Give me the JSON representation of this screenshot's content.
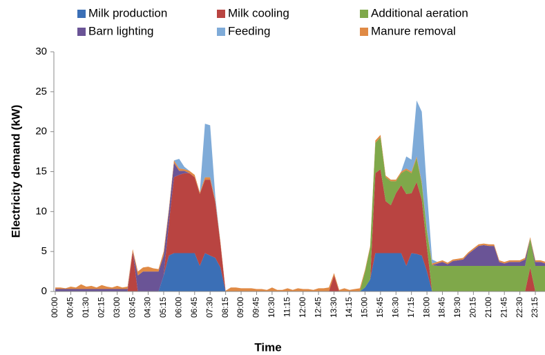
{
  "chart_data": {
    "type": "stacked-area",
    "y_label": "Electricity demand (kW)",
    "x_label": "Time",
    "ylim": [
      0,
      30
    ],
    "yticks": [
      0,
      5,
      10,
      15,
      20,
      25,
      30
    ],
    "categories": [
      "00:00",
      null,
      null,
      "00:45",
      null,
      null,
      "01:30",
      null,
      null,
      "02:15",
      null,
      null,
      "03:00",
      null,
      null,
      "03:45",
      null,
      null,
      "04:30",
      null,
      null,
      "05:15",
      null,
      null,
      "06:00",
      null,
      null,
      "06:45",
      null,
      null,
      "07:30",
      null,
      null,
      "08:15",
      null,
      null,
      "09:00",
      null,
      null,
      "09:45",
      null,
      null,
      "10:30",
      null,
      null,
      "11:15",
      null,
      null,
      "12:00",
      null,
      null,
      "12:45",
      null,
      null,
      "13:30",
      null,
      null,
      "14:15",
      null,
      null,
      "15:00",
      null,
      null,
      "15:45",
      null,
      null,
      "16:30",
      null,
      null,
      "17:15",
      null,
      null,
      "18:00",
      null,
      null,
      "18:45",
      null,
      null,
      "19:30",
      null,
      null,
      "20:15",
      null,
      null,
      "21:00",
      null,
      null,
      "21:45",
      null,
      null,
      "22:30",
      null,
      null,
      "23:15",
      null,
      null
    ],
    "series": [
      {
        "name": "Milk production",
        "color": "#3b6fb6",
        "values": [
          0,
          0,
          0,
          0,
          0,
          0,
          0,
          0,
          0,
          0,
          0,
          0,
          0,
          0,
          0,
          0,
          0,
          0,
          0,
          0,
          0,
          2,
          4.5,
          4.8,
          4.8,
          4.8,
          4.8,
          4.8,
          3.2,
          4.8,
          4.5,
          4.2,
          3,
          0,
          0,
          0,
          0,
          0,
          0,
          0,
          0,
          0,
          0,
          0,
          0,
          0,
          0,
          0,
          0,
          0,
          0,
          0,
          0,
          0,
          0,
          0,
          0,
          0,
          0,
          0,
          0.5,
          1.5,
          4.8,
          4.8,
          4.8,
          4.8,
          4.8,
          4.8,
          3.2,
          4.8,
          4.7,
          4.5,
          2.5,
          0,
          0,
          0,
          0,
          0,
          0,
          0,
          0,
          0,
          0,
          0,
          0,
          0,
          0,
          0,
          0,
          0,
          0,
          0,
          0,
          0,
          0,
          0
        ]
      },
      {
        "name": "Milk cooling",
        "color": "#b94441",
        "values": [
          0,
          0,
          0,
          0,
          0,
          0,
          0,
          0,
          0,
          0,
          0,
          0,
          0,
          0,
          0,
          5,
          0,
          0,
          0,
          0,
          0,
          0,
          4,
          9.5,
          9.8,
          10,
          10,
          9.5,
          9,
          9.2,
          9.5,
          7,
          3,
          0,
          0,
          0,
          0,
          0,
          0,
          0,
          0,
          0,
          0,
          0,
          0,
          0,
          0,
          0,
          0,
          0,
          0,
          0,
          0,
          0,
          2,
          0,
          0,
          0,
          0,
          0,
          0,
          0,
          10,
          10.5,
          6.5,
          6,
          7.5,
          8.5,
          9,
          7.5,
          9,
          7,
          3,
          0,
          0,
          0,
          0,
          0,
          0,
          0,
          0,
          0,
          0,
          0,
          0,
          0,
          0,
          0,
          0,
          0,
          0,
          0,
          3,
          0,
          0,
          0
        ]
      },
      {
        "name": "Additional aeration",
        "color": "#7fa84a",
        "values": [
          0,
          0,
          0,
          0,
          0,
          0,
          0,
          0,
          0,
          0,
          0,
          0,
          0,
          0,
          0,
          0,
          0,
          0,
          0,
          0,
          0,
          0,
          0,
          0,
          0,
          0,
          0,
          0,
          0,
          0,
          0,
          0,
          0,
          0,
          0,
          0,
          0,
          0,
          0,
          0,
          0,
          0,
          0,
          0,
          0,
          0,
          0,
          0,
          0,
          0,
          0,
          0,
          0,
          0,
          0,
          0,
          0,
          0,
          0,
          0,
          2,
          4,
          3.8,
          4,
          3,
          3,
          1.5,
          1.5,
          3,
          2.5,
          3,
          2,
          2,
          3.3,
          3.2,
          3.2,
          3.2,
          3.2,
          3.2,
          3.2,
          3.2,
          3.2,
          3.2,
          3.2,
          3.2,
          3.2,
          3.2,
          3.2,
          3.2,
          3.2,
          3.2,
          3.2,
          3.6,
          3.2,
          3.2,
          3.2
        ]
      },
      {
        "name": "Barn lighting",
        "color": "#6a5496",
        "values": [
          0.3,
          0.3,
          0.3,
          0.3,
          0.3,
          0.3,
          0.3,
          0.3,
          0.3,
          0.3,
          0.3,
          0.3,
          0.3,
          0.3,
          0.3,
          0,
          2,
          2.5,
          2.5,
          2.5,
          2.5,
          2.5,
          1.5,
          1.8,
          0.5,
          0.3,
          0,
          0,
          0,
          0,
          0,
          0,
          0,
          0,
          0,
          0,
          0,
          0,
          0,
          0,
          0,
          0,
          0,
          0,
          0,
          0,
          0,
          0,
          0,
          0,
          0,
          0,
          0,
          0,
          0,
          0,
          0,
          0,
          0,
          0,
          0,
          0,
          0,
          0,
          0,
          0,
          0,
          0,
          0,
          0,
          0,
          0,
          0,
          0,
          0.3,
          0.5,
          0.2,
          0.6,
          0.7,
          0.8,
          1.5,
          2,
          2.5,
          2.6,
          2.5,
          2.5,
          0.5,
          0.3,
          0.5,
          0.5,
          0.5,
          0.8,
          0,
          0.5,
          0.5,
          0.3
        ]
      },
      {
        "name": "Feeding",
        "color": "#7fabd8",
        "values": [
          0,
          0,
          0,
          0,
          0,
          0,
          0,
          0,
          0,
          0,
          0,
          0,
          0,
          0,
          0,
          0,
          0,
          0,
          0,
          0,
          0,
          0,
          0,
          0,
          1.2,
          0.3,
          0,
          0,
          0,
          6.7,
          6.5,
          0.5,
          0,
          0,
          0,
          0,
          0,
          0,
          0,
          0,
          0,
          0,
          0,
          0,
          0,
          0,
          0,
          0,
          0,
          0,
          0,
          0,
          0,
          0,
          0,
          0,
          0,
          0,
          0,
          0,
          0,
          0,
          0,
          0,
          0,
          0,
          0,
          0,
          1.5,
          1.5,
          7,
          8.8,
          4.8,
          0.5,
          0,
          0,
          0,
          0,
          0,
          0,
          0,
          0,
          0,
          0,
          0,
          0,
          0,
          0,
          0,
          0,
          0,
          0,
          0,
          0,
          0,
          0
        ]
      },
      {
        "name": "Manure removal",
        "color": "#e08a45",
        "values": [
          0.2,
          0.2,
          0.1,
          0.3,
          0.2,
          0.6,
          0.3,
          0.4,
          0.2,
          0.5,
          0.3,
          0.2,
          0.4,
          0.2,
          0.3,
          0.3,
          0.5,
          0.5,
          0.6,
          0.4,
          0.3,
          0.5,
          0.3,
          0.3,
          0.3,
          0.2,
          0.3,
          0.3,
          0.2,
          0.3,
          0.3,
          0.2,
          0.2,
          0.1,
          0.5,
          0.5,
          0.4,
          0.4,
          0.4,
          0.3,
          0.3,
          0.2,
          0.5,
          0.2,
          0.2,
          0.4,
          0.2,
          0.4,
          0.3,
          0.3,
          0.2,
          0.4,
          0.4,
          0.5,
          0.3,
          0.2,
          0.4,
          0.2,
          0.3,
          0.4,
          0.2,
          0.2,
          0.3,
          0.3,
          0.2,
          0.2,
          0.2,
          0.2,
          0.2,
          0.2,
          0.2,
          0.2,
          0.2,
          0.2,
          0.2,
          0.2,
          0.2,
          0.2,
          0.2,
          0.2,
          0.2,
          0.2,
          0.2,
          0.2,
          0.2,
          0.2,
          0.2,
          0.2,
          0.2,
          0.2,
          0.2,
          0.2,
          0.2,
          0.2,
          0.2,
          0.2
        ]
      }
    ]
  }
}
